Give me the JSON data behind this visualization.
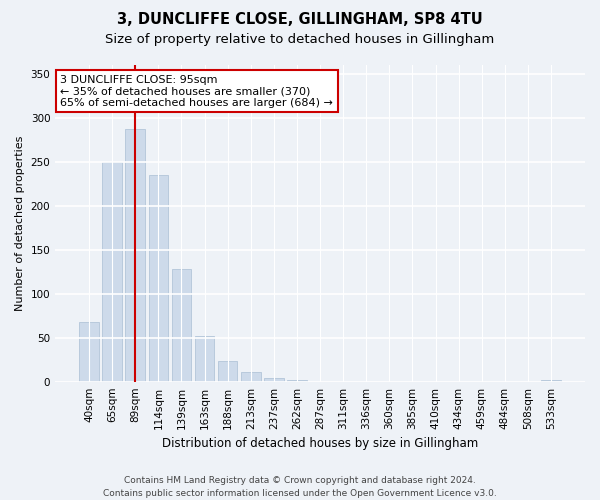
{
  "title1": "3, DUNCLIFFE CLOSE, GILLINGHAM, SP8 4TU",
  "title2": "Size of property relative to detached houses in Gillingham",
  "xlabel": "Distribution of detached houses by size in Gillingham",
  "ylabel": "Number of detached properties",
  "categories": [
    "40sqm",
    "65sqm",
    "89sqm",
    "114sqm",
    "139sqm",
    "163sqm",
    "188sqm",
    "213sqm",
    "237sqm",
    "262sqm",
    "287sqm",
    "311sqm",
    "336sqm",
    "360sqm",
    "385sqm",
    "410sqm",
    "434sqm",
    "459sqm",
    "484sqm",
    "508sqm",
    "533sqm"
  ],
  "values": [
    68,
    250,
    287,
    235,
    128,
    52,
    23,
    11,
    4,
    2,
    0,
    0,
    0,
    0,
    0,
    0,
    0,
    0,
    0,
    0,
    2
  ],
  "bar_color": "#cddaea",
  "bar_edgecolor": "#aabfd4",
  "vline_x_index": 2,
  "vline_color": "#cc0000",
  "annotation_line1": "3 DUNCLIFFE CLOSE: 95sqm",
  "annotation_line2": "← 35% of detached houses are smaller (370)",
  "annotation_line3": "65% of semi-detached houses are larger (684) →",
  "annotation_box_facecolor": "#ffffff",
  "annotation_box_edgecolor": "#cc0000",
  "ylim": [
    0,
    360
  ],
  "yticks": [
    0,
    50,
    100,
    150,
    200,
    250,
    300,
    350
  ],
  "footnote": "Contains HM Land Registry data © Crown copyright and database right 2024.\nContains public sector information licensed under the Open Government Licence v3.0.",
  "background_color": "#eef2f7",
  "grid_color": "#ffffff",
  "title1_fontsize": 10.5,
  "title2_fontsize": 9.5,
  "xlabel_fontsize": 8.5,
  "ylabel_fontsize": 8.0,
  "tick_fontsize": 7.5,
  "annotation_fontsize": 8.0,
  "footnote_fontsize": 6.5
}
